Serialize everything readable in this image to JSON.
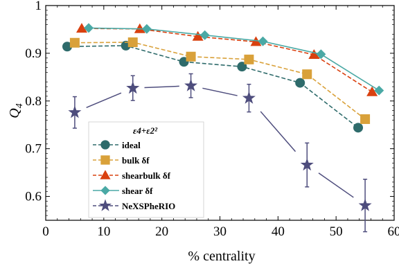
{
  "chart_data": {
    "type": "line",
    "xlabel": "% centrality",
    "ylabel": "Q",
    "ylabel_sub": "4",
    "xlim": [
      0,
      60
    ],
    "ylim": [
      0.55,
      1.0
    ],
    "xticks": [
      0,
      10,
      20,
      30,
      40,
      50,
      60
    ],
    "yticks": [
      0.6,
      0.7,
      0.8,
      0.9,
      1.0
    ],
    "ytick_labels": [
      "0.6",
      "0.7",
      "0.8",
      "0.9",
      "1"
    ],
    "grid": false,
    "legend_placement": "left-middle",
    "legend_title": "ε4+ε2²",
    "series": [
      {
        "name": "ideal",
        "color": "#2e6b6b",
        "marker": "circle",
        "line_style": "dashed",
        "x": [
          3.7,
          13.8,
          23.8,
          33.8,
          43.8,
          53.8
        ],
        "y": [
          0.914,
          0.916,
          0.882,
          0.872,
          0.838,
          0.744
        ]
      },
      {
        "name": "bulk δf",
        "color": "#d9a13a",
        "marker": "square",
        "line_style": "dashed",
        "x": [
          5.0,
          15.0,
          25.0,
          35.0,
          45.0,
          55.0
        ],
        "y": [
          0.922,
          0.923,
          0.893,
          0.887,
          0.856,
          0.762
        ]
      },
      {
        "name": "shearbulk δf",
        "color": "#d9400f",
        "marker": "triangle",
        "line_style": "dashed",
        "x": [
          6.2,
          16.2,
          26.2,
          36.2,
          46.2,
          56.2
        ],
        "y": [
          0.952,
          0.951,
          0.935,
          0.924,
          0.897,
          0.819
        ]
      },
      {
        "name": "shear δf",
        "color": "#4aa9a5",
        "marker": "diamond",
        "line_style": "solid",
        "x": [
          7.4,
          17.4,
          27.4,
          37.4,
          47.4,
          57.4
        ],
        "y": [
          0.953,
          0.951,
          0.938,
          0.925,
          0.898,
          0.822
        ]
      },
      {
        "name": "NeXSPheRIO",
        "color": "#4e4d7d",
        "marker": "star",
        "line_style": "broken",
        "x": [
          5.0,
          15.0,
          25.0,
          35.0,
          45.0,
          55.0
        ],
        "y": [
          0.776,
          0.827,
          0.832,
          0.806,
          0.666,
          0.581
        ],
        "err": [
          0.033,
          0.026,
          0.025,
          0.029,
          0.046,
          0.055
        ]
      }
    ]
  }
}
